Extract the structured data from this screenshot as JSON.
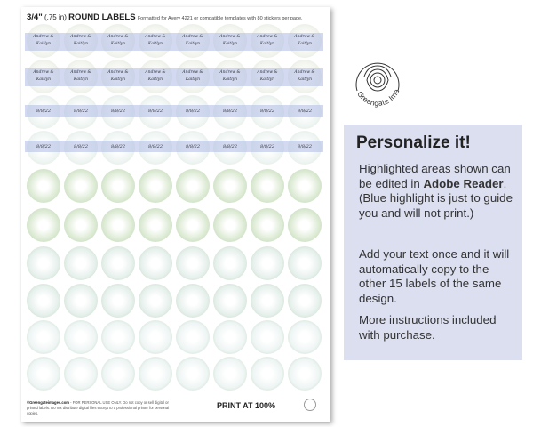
{
  "sheet": {
    "size": "3/4\"",
    "size_in": "(.75 in)",
    "title": "ROUND LABELS",
    "subtitle": "Formatted for Avery 4221 or compatible templates with 80 stickers per page.",
    "label_name_line1": "Andrew &",
    "label_name_line2": "Kaitlyn",
    "label_date": "8/8/22",
    "footer_brand": "©Greengateimages.com",
    "footer_text": " - FOR PERSONAL USE ONLY. Do not copy or sell digital or printed labels. Do not distribute digital files except to a professional printer for personal copies.",
    "print_note": "PRINT AT 100%"
  },
  "logo": {
    "text": "Greengate Images",
    "icon": "succulent-rose-icon"
  },
  "panel": {
    "title": "Personalize it!",
    "p1_a": "Highlighted areas shown can be edited in ",
    "p1_bold": "Adobe Reader",
    "p1_b": ". (Blue highlight is just to guide you and will not print.)",
    "p2": "Add your text once and it will automatically copy to the other 15 labels of the same design.",
    "p3": "More instructions included with purchase."
  },
  "colors": {
    "highlight": "#b4c0e6",
    "panel_bg": "#dcdff0",
    "leaf": "#8fbfae"
  }
}
